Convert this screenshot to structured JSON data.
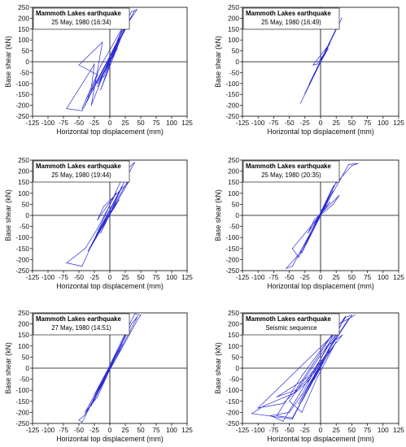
{
  "style": {
    "line_color": "#2c2cd6",
    "axis_color": "#000000",
    "background": "#ffffff"
  },
  "chart_data": [
    {
      "type": "line",
      "title": "Mammoth Lakes earthquake",
      "subtitle": "25 May, 1980 (16:34)",
      "xlabel": "Horizontal top displacement (mm)",
      "ylabel": "Base shear (kN)",
      "xlim": [
        -125,
        125
      ],
      "ylim": [
        -250,
        250
      ],
      "xticks": [
        "-125",
        "-100",
        "-75",
        "-50",
        "-25",
        "0",
        "25",
        "50",
        "75",
        "100",
        "125"
      ],
      "yticks": [
        "250",
        "200",
        "150",
        "100",
        "50",
        "0",
        "-50",
        "-100",
        "-150",
        "-200",
        "-250"
      ],
      "grid": false,
      "series": [
        {
          "points": [
            [
              0,
              0
            ],
            [
              -8,
              -45
            ],
            [
              12,
              60
            ],
            [
              -20,
              -100
            ],
            [
              30,
              175
            ],
            [
              -35,
              -160
            ],
            [
              40,
              235
            ],
            [
              -45,
              -225
            ],
            [
              -70,
              -215
            ],
            [
              -30,
              -35
            ],
            [
              -25,
              -10
            ],
            [
              -30,
              -120
            ],
            [
              -45,
              -215
            ],
            [
              -15,
              -20
            ],
            [
              35,
              230
            ],
            [
              44,
              240
            ],
            [
              20,
              140
            ],
            [
              -40,
              -200
            ],
            [
              -20,
              -60
            ],
            [
              -50,
              -15
            ],
            [
              -12,
              90
            ],
            [
              -30,
              -200
            ],
            [
              -5,
              -20
            ],
            [
              25,
              160
            ],
            [
              -15,
              -130
            ],
            [
              20,
              150
            ],
            [
              -20,
              -115
            ],
            [
              15,
              90
            ],
            [
              -10,
              -70
            ],
            [
              10,
              60
            ],
            [
              -5,
              -25
            ],
            [
              0,
              5
            ]
          ]
        }
      ]
    },
    {
      "type": "line",
      "title": "Mammoth Lakes earthquake",
      "subtitle": "25 May, 1980 (16:49)",
      "xlabel": "Horizontal top displacement (mm)",
      "ylabel": "Base shear (kN)",
      "xlim": [
        -125,
        125
      ],
      "ylim": [
        -250,
        250
      ],
      "xticks": [
        "-125",
        "-100",
        "-75",
        "-50",
        "-25",
        "0",
        "25",
        "50",
        "75",
        "100",
        "125"
      ],
      "yticks": [
        "250",
        "200",
        "150",
        "100",
        "50",
        "0",
        "-50",
        "-100",
        "-150",
        "-200",
        "-250"
      ],
      "grid": false,
      "series": [
        {
          "points": [
            [
              0,
              0
            ],
            [
              12,
              60
            ],
            [
              -10,
              -55
            ],
            [
              20,
              120
            ],
            [
              -18,
              -100
            ],
            [
              28,
              170
            ],
            [
              -25,
              -145
            ],
            [
              34,
              200
            ],
            [
              -32,
              -190
            ],
            [
              15,
              85
            ],
            [
              -12,
              -15
            ],
            [
              -6,
              -12
            ],
            [
              10,
              55
            ],
            [
              -8,
              -45
            ],
            [
              5,
              30
            ],
            [
              0,
              0
            ]
          ]
        }
      ]
    },
    {
      "type": "line",
      "title": "Mammoth Lakes earthquake",
      "subtitle": "25 May, 1980 (19:44)",
      "xlabel": "Horizontal top displacement (mm)",
      "ylabel": "Base shear (kN)",
      "xlim": [
        -125,
        125
      ],
      "ylim": [
        -250,
        250
      ],
      "xticks": [
        "-125",
        "-100",
        "-75",
        "-50",
        "-25",
        "0",
        "25",
        "50",
        "75",
        "100",
        "125"
      ],
      "yticks": [
        "250",
        "200",
        "150",
        "100",
        "50",
        "0",
        "-50",
        "-100",
        "-150",
        "-200",
        "-250"
      ],
      "grid": false,
      "series": [
        {
          "points": [
            [
              0,
              0
            ],
            [
              -10,
              -40
            ],
            [
              15,
              70
            ],
            [
              -25,
              -110
            ],
            [
              28,
              150
            ],
            [
              -35,
              -160
            ],
            [
              40,
              240
            ],
            [
              25,
              200
            ],
            [
              -45,
              -230
            ],
            [
              -70,
              -215
            ],
            [
              -40,
              -150
            ],
            [
              -20,
              -60
            ],
            [
              10,
              100
            ],
            [
              -20,
              -20
            ],
            [
              -10,
              40
            ],
            [
              30,
              150
            ],
            [
              -30,
              -140
            ],
            [
              20,
              130
            ],
            [
              -15,
              -80
            ],
            [
              10,
              60
            ],
            [
              -5,
              -20
            ],
            [
              0,
              0
            ]
          ]
        }
      ]
    },
    {
      "type": "line",
      "title": "Mammoth Lakes earthquake",
      "subtitle": "25 May, 1980 (20:35)",
      "xlabel": "Horizontal top displacement (mm)",
      "ylabel": "Base shear (kN)",
      "xlim": [
        -125,
        125
      ],
      "ylim": [
        -250,
        250
      ],
      "xticks": [
        "-125",
        "-100",
        "-75",
        "-50",
        "-25",
        "0",
        "25",
        "50",
        "75",
        "100",
        "125"
      ],
      "yticks": [
        "250",
        "200",
        "150",
        "100",
        "50",
        "0",
        "-50",
        "-100",
        "-150",
        "-200",
        "-250"
      ],
      "grid": false,
      "series": [
        {
          "points": [
            [
              0,
              0
            ],
            [
              -8,
              -40
            ],
            [
              10,
              60
            ],
            [
              -20,
              -100
            ],
            [
              25,
              150
            ],
            [
              -30,
              -170
            ],
            [
              20,
              110
            ],
            [
              -45,
              -230
            ],
            [
              -55,
              -240
            ],
            [
              -30,
              -160
            ],
            [
              15,
              80
            ],
            [
              45,
              230
            ],
            [
              60,
              235
            ],
            [
              50,
              225
            ],
            [
              20,
              130
            ],
            [
              -35,
              -190
            ],
            [
              -45,
              -150
            ],
            [
              -10,
              -30
            ],
            [
              15,
              60
            ],
            [
              5,
              30
            ],
            [
              -20,
              -80
            ],
            [
              -10,
              -20
            ],
            [
              30,
              90
            ],
            [
              20,
              50
            ],
            [
              -5,
              -10
            ],
            [
              0,
              0
            ]
          ]
        }
      ]
    },
    {
      "type": "line",
      "title": "Mammoth Lakes earthquake",
      "subtitle": "27 May, 1980 (14:51)",
      "xlabel": "Horizontal top displacement (mm)",
      "ylabel": "Base shear (kN)",
      "xlim": [
        -125,
        125
      ],
      "ylim": [
        -250,
        250
      ],
      "xticks": [
        "-125",
        "-100",
        "-75",
        "-50",
        "-25",
        "0",
        "25",
        "50",
        "75",
        "100",
        "125"
      ],
      "yticks": [
        "250",
        "200",
        "150",
        "100",
        "50",
        "0",
        "-50",
        "-100",
        "-150",
        "-200",
        "-250"
      ],
      "grid": false,
      "series": [
        {
          "points": [
            [
              0,
              0
            ],
            [
              -10,
              -50
            ],
            [
              15,
              80
            ],
            [
              -25,
              -120
            ],
            [
              30,
              170
            ],
            [
              -35,
              -190
            ],
            [
              40,
              245
            ],
            [
              50,
              240
            ],
            [
              45,
              220
            ],
            [
              -40,
              -210
            ],
            [
              -50,
              -235
            ],
            [
              -45,
              -245
            ],
            [
              -20,
              -110
            ],
            [
              35,
              200
            ],
            [
              45,
              235
            ],
            [
              -30,
              -170
            ],
            [
              20,
              110
            ],
            [
              -40,
              -200
            ],
            [
              -20,
              -130
            ],
            [
              25,
              150
            ],
            [
              -15,
              -90
            ],
            [
              10,
              60
            ],
            [
              -5,
              -20
            ],
            [
              0,
              0
            ]
          ]
        }
      ]
    },
    {
      "type": "line",
      "title": "Mammoth Lakes earthquake",
      "subtitle": "Seismic sequence",
      "xlabel": "Horizontal top displacement (mm)",
      "ylabel": "Base shear (kN)",
      "xlim": [
        -125,
        125
      ],
      "ylim": [
        -250,
        250
      ],
      "xticks": [
        "-125",
        "-100",
        "-75",
        "-50",
        "-25",
        "0",
        "25",
        "50",
        "75",
        "100",
        "125"
      ],
      "yticks": [
        "250",
        "200",
        "150",
        "100",
        "50",
        "0",
        "-50",
        "-100",
        "-150",
        "-200",
        "-250"
      ],
      "grid": false,
      "series": [
        {
          "points": [
            [
              0,
              0
            ],
            [
              -10,
              -50
            ],
            [
              15,
              80
            ],
            [
              -30,
              -150
            ],
            [
              30,
              170
            ],
            [
              -45,
              -225
            ],
            [
              -70,
              -215
            ],
            [
              -30,
              -35
            ],
            [
              40,
              235
            ],
            [
              -45,
              -230
            ],
            [
              -110,
              -205
            ],
            [
              -90,
              -170
            ],
            [
              -40,
              -110
            ],
            [
              -20,
              -60
            ],
            [
              50,
              240
            ],
            [
              40,
              230
            ],
            [
              -60,
              -240
            ],
            [
              -80,
              -215
            ],
            [
              -50,
              -200
            ],
            [
              -30,
              -120
            ],
            [
              20,
              150
            ],
            [
              -100,
              -180
            ],
            [
              -60,
              -160
            ],
            [
              -10,
              -20
            ],
            [
              45,
              225
            ],
            [
              55,
              240
            ],
            [
              30,
              200
            ],
            [
              -40,
              -100
            ],
            [
              -70,
              -130
            ],
            [
              -20,
              -40
            ],
            [
              35,
              150
            ],
            [
              10,
              100
            ],
            [
              -50,
              -150
            ],
            [
              -30,
              -200
            ],
            [
              -5,
              -40
            ],
            [
              25,
              120
            ],
            [
              -15,
              -60
            ],
            [
              15,
              90
            ],
            [
              -35,
              -160
            ],
            [
              -20,
              -80
            ],
            [
              5,
              40
            ],
            [
              -10,
              -30
            ],
            [
              0,
              0
            ]
          ]
        }
      ]
    }
  ]
}
